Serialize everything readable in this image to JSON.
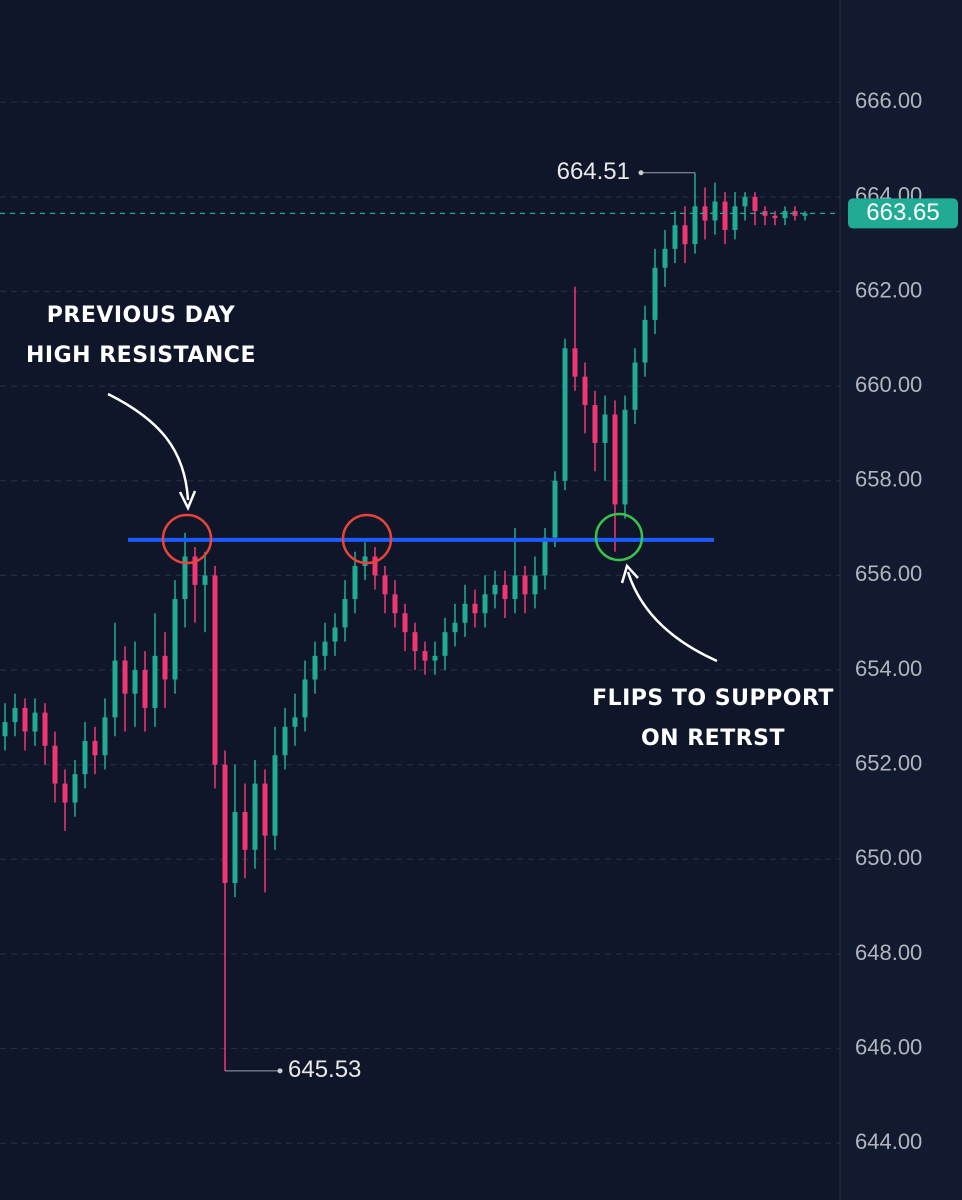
{
  "chart_data": {
    "type": "candlestick",
    "up_color": "#22ab94",
    "down_color": "#f23674",
    "ylim": [
      642.8,
      668.16
    ],
    "yticks": [
      {
        "value": 644,
        "label": "644.00"
      },
      {
        "value": 646,
        "label": "646.00"
      },
      {
        "value": 648,
        "label": "648.00"
      },
      {
        "value": 650,
        "label": "650.00"
      },
      {
        "value": 652,
        "label": "652.00"
      },
      {
        "value": 654,
        "label": "654.00"
      },
      {
        "value": 656,
        "label": "656.00"
      },
      {
        "value": 658,
        "label": "658.00"
      },
      {
        "value": 660,
        "label": "660.00"
      },
      {
        "value": 662,
        "label": "662.00"
      },
      {
        "value": 664,
        "label": "664.00"
      },
      {
        "value": 666,
        "label": "666.00"
      }
    ],
    "grid": true,
    "open": [
      652.6,
      652.9,
      653.2,
      652.7,
      653.1,
      652.4,
      651.6,
      651.2,
      651.8,
      652.5,
      652.2,
      653.0,
      654.2,
      653.5,
      654.0,
      653.2,
      654.3,
      653.8,
      655.5,
      656.4,
      655.8,
      656.0,
      652.0,
      649.5,
      651.0,
      650.2,
      651.6,
      650.5,
      652.2,
      652.8,
      653.0,
      653.8,
      654.3,
      654.6,
      654.9,
      655.5,
      656.2,
      656.4,
      656.0,
      655.6,
      655.2,
      654.8,
      654.4,
      654.2,
      654.3,
      654.8,
      655.0,
      655.4,
      655.2,
      655.6,
      655.8,
      655.5,
      656.0,
      655.6,
      656.0,
      656.8,
      658.0,
      660.8,
      660.2,
      659.6,
      658.8,
      659.4,
      657.5,
      659.5,
      660.5,
      661.4,
      662.5,
      662.9,
      663.4,
      663.0,
      663.8,
      663.5,
      663.9,
      663.3,
      663.8,
      664.0,
      663.7,
      663.6,
      663.55,
      663.7,
      663.6
    ],
    "high": [
      653.3,
      653.5,
      653.4,
      653.4,
      653.3,
      652.7,
      651.9,
      652.1,
      652.9,
      652.8,
      653.4,
      655.0,
      654.5,
      654.6,
      654.4,
      655.2,
      654.8,
      655.9,
      656.9,
      656.6,
      656.5,
      656.2,
      652.3,
      652.0,
      651.6,
      652.1,
      651.9,
      652.8,
      653.2,
      653.5,
      654.2,
      654.6,
      655.0,
      655.2,
      655.9,
      656.5,
      656.7,
      656.6,
      656.2,
      655.9,
      655.4,
      655.0,
      654.6,
      654.6,
      655.1,
      655.4,
      655.8,
      655.7,
      656.0,
      656.1,
      656.1,
      657.0,
      656.2,
      656.4,
      657.0,
      658.2,
      661.0,
      662.1,
      660.5,
      659.9,
      659.8,
      659.7,
      659.8,
      660.8,
      661.7,
      662.9,
      663.3,
      663.7,
      663.8,
      664.51,
      664.2,
      664.3,
      664.1,
      664.1,
      664.1,
      664.1,
      663.8,
      663.7,
      663.8,
      663.8,
      663.7
    ],
    "low": [
      652.3,
      652.6,
      652.3,
      652.4,
      652.0,
      651.2,
      650.6,
      650.9,
      651.5,
      651.8,
      651.9,
      652.6,
      652.7,
      652.8,
      652.7,
      652.8,
      653.2,
      653.5,
      654.9,
      655.0,
      654.8,
      651.5,
      645.53,
      649.2,
      649.6,
      649.8,
      649.3,
      650.2,
      651.9,
      652.4,
      652.7,
      653.5,
      654.0,
      654.3,
      654.6,
      655.2,
      655.9,
      655.7,
      655.2,
      654.9,
      654.4,
      654.0,
      653.9,
      653.9,
      654.0,
      654.5,
      654.7,
      654.9,
      654.9,
      655.3,
      655.1,
      655.2,
      655.2,
      655.3,
      655.7,
      656.6,
      657.8,
      659.9,
      659.0,
      658.2,
      658.0,
      656.5,
      657.2,
      659.2,
      660.2,
      661.1,
      662.1,
      662.6,
      662.6,
      662.8,
      663.1,
      663.2,
      663.0,
      663.1,
      663.5,
      663.4,
      663.4,
      663.4,
      663.4,
      663.5,
      663.5
    ],
    "close": [
      652.9,
      653.2,
      652.7,
      653.1,
      652.4,
      651.6,
      651.2,
      651.8,
      652.5,
      652.2,
      653.0,
      654.2,
      653.5,
      654.0,
      653.2,
      654.3,
      653.8,
      655.5,
      656.4,
      655.8,
      656.0,
      652.0,
      649.5,
      651.0,
      650.2,
      651.6,
      650.5,
      652.2,
      652.8,
      653.0,
      653.8,
      654.3,
      654.6,
      654.9,
      655.5,
      656.2,
      656.4,
      656.0,
      655.6,
      655.2,
      654.8,
      654.4,
      654.2,
      654.3,
      654.8,
      655.0,
      655.4,
      655.2,
      655.6,
      655.8,
      655.5,
      656.0,
      655.6,
      656.0,
      656.8,
      658.0,
      660.8,
      660.2,
      659.6,
      658.8,
      659.4,
      657.5,
      659.5,
      660.5,
      661.4,
      662.5,
      662.9,
      663.4,
      663.0,
      663.8,
      663.5,
      663.9,
      663.3,
      663.8,
      664.0,
      663.7,
      663.6,
      663.55,
      663.7,
      663.6,
      663.65
    ],
    "hline": {
      "value": 656.75,
      "color": "#1e5bff"
    },
    "annotations": [
      {
        "lines": [
          "PREVIOUS DAY",
          "HIGH RESISTANCE"
        ]
      },
      {
        "lines": [
          "FLIPS TO SUPPORT",
          "ON RETRST"
        ]
      }
    ]
  }
}
